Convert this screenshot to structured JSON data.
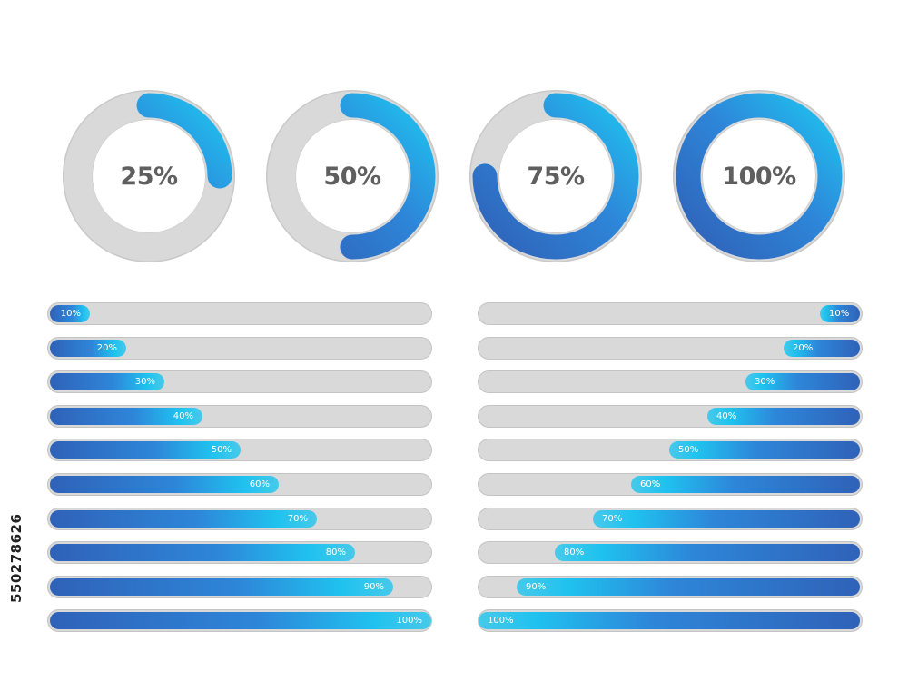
{
  "colors": {
    "track": "#d9d9d9",
    "track_border": "#c4c4c4",
    "blue_dark": "#2f62b8",
    "blue_mid": "#2e86d9",
    "cyan": "#1fc2ef",
    "cyan_light": "#47c9ea",
    "label_text": "#5f5f5f"
  },
  "rings": [
    {
      "label": "25%",
      "fraction": 0.25
    },
    {
      "label": "50%",
      "fraction": 0.5
    },
    {
      "label": "75%",
      "fraction": 0.75
    },
    {
      "label": "100%",
      "fraction": 1.0
    }
  ],
  "left_bars": [
    {
      "label": "10%",
      "fraction": 0.1
    },
    {
      "label": "20%",
      "fraction": 0.2
    },
    {
      "label": "30%",
      "fraction": 0.3
    },
    {
      "label": "40%",
      "fraction": 0.4
    },
    {
      "label": "50%",
      "fraction": 0.5
    },
    {
      "label": "60%",
      "fraction": 0.6
    },
    {
      "label": "70%",
      "fraction": 0.7
    },
    {
      "label": "80%",
      "fraction": 0.8
    },
    {
      "label": "90%",
      "fraction": 0.9
    },
    {
      "label": "100%",
      "fraction": 1.0
    }
  ],
  "right_bars": [
    {
      "label": "10%",
      "fraction": 0.1
    },
    {
      "label": "20%",
      "fraction": 0.2
    },
    {
      "label": "30%",
      "fraction": 0.3
    },
    {
      "label": "40%",
      "fraction": 0.4
    },
    {
      "label": "50%",
      "fraction": 0.5
    },
    {
      "label": "60%",
      "fraction": 0.6
    },
    {
      "label": "70%",
      "fraction": 0.7
    },
    {
      "label": "80%",
      "fraction": 0.8
    },
    {
      "label": "90%",
      "fraction": 0.9
    },
    {
      "label": "100%",
      "fraction": 1.0
    }
  ],
  "watermark_id": "550278626"
}
